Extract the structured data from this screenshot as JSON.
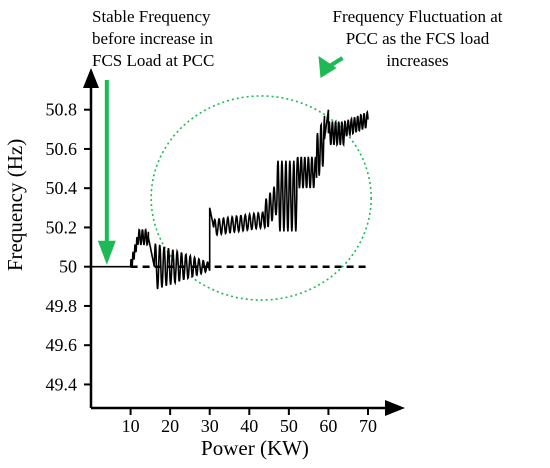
{
  "chart_data": {
    "type": "line",
    "xlabel": "Power (KW)",
    "ylabel": "Frequency  (Hz)",
    "x_ticks": [
      "10",
      "20",
      "30",
      "40",
      "50",
      "60",
      "70"
    ],
    "y_ticks": [
      "49.4",
      "49.6",
      "49.8",
      "50",
      "50.2",
      "50.4",
      "50.6",
      "50.8"
    ],
    "xlim": [
      0,
      72
    ],
    "ylim": [
      49.28,
      50.88
    ],
    "grid": false,
    "annotations": [
      {
        "lines": [
          "Stable Frequency",
          "before increase in",
          "FCS Load at PCC"
        ],
        "arrow_color": "#1db954",
        "points_to": [
          4,
          50
        ]
      },
      {
        "lines": [
          "Frequency Fluctuation at",
          "PCC as the FCS load",
          "increases"
        ],
        "arrow_color": "#1db954",
        "points_to": [
          58,
          50.82
        ]
      }
    ],
    "highlight_ellipse": {
      "color": "#1db954",
      "style": "dotted",
      "center": [
        43,
        50.35
      ],
      "rx_kw": 27.8,
      "ry_hz": 0.52
    },
    "series": [
      {
        "style": "solid",
        "color": "#000000",
        "segments": [
          {
            "x": [
              0,
              10
            ],
            "constant": 50
          },
          {
            "x": [
              10,
              12
            ],
            "from": 50,
            "to": 50.15,
            "osc_amp": 0.03,
            "osc_period": 0.5
          },
          {
            "x": [
              12,
              14.5
            ],
            "center": 50.15,
            "osc_amp": 0.04,
            "osc_period": 0.8
          },
          {
            "x": [
              14.5,
              16
            ],
            "from": 50.15,
            "to": 50.0
          },
          {
            "x": [
              16,
              30
            ],
            "center": 50.0,
            "osc_amp_start": 0.12,
            "osc_amp_end": 0.02,
            "osc_period": 1.1
          },
          {
            "x": [
              30,
              30
            ],
            "jump_to": 50.3
          },
          {
            "x": [
              30,
              31
            ],
            "from": 50.3,
            "to": 50.2
          },
          {
            "x": [
              31,
              44
            ],
            "center_from": 50.2,
            "center_to": 50.24,
            "osc_amp": 0.04,
            "osc_period": 1.1
          },
          {
            "x": [
              44,
              47
            ],
            "center_from": 50.26,
            "center_to": 50.35,
            "osc_amp": 0.08,
            "osc_period": 1.0
          },
          {
            "x": [
              47,
              52
            ],
            "center": 50.36,
            "osc_amp": 0.18,
            "osc_period": 1.0
          },
          {
            "x": [
              52,
              57
            ],
            "center": 50.48,
            "osc_amp": 0.08,
            "osc_period": 0.9
          },
          {
            "x": [
              57,
              59
            ],
            "center_from": 50.55,
            "center_to": 50.65,
            "osc_amp": 0.12,
            "osc_period": 0.9
          },
          {
            "x": [
              59,
              60
            ],
            "from": 50.65,
            "to": 50.8
          },
          {
            "x": [
              60,
              64
            ],
            "center": 50.68,
            "osc_amp": 0.06,
            "osc_period": 0.8
          },
          {
            "x": [
              64,
              70
            ],
            "center_from": 50.7,
            "center_to": 50.75,
            "osc_amp": 0.04,
            "osc_period": 0.8
          }
        ]
      },
      {
        "style": "dashed",
        "color": "#000000",
        "segments": [
          {
            "x": [
              10,
              70
            ],
            "constant": 50
          }
        ]
      }
    ]
  }
}
